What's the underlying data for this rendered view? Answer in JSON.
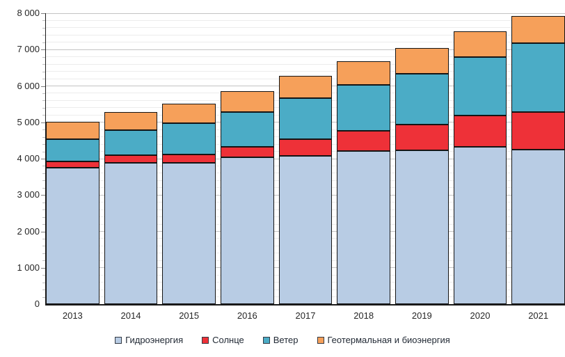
{
  "chart_data": {
    "type": "bar",
    "stacked": true,
    "title": "",
    "xlabel": "",
    "ylabel": "",
    "categories": [
      "2013",
      "2014",
      "2015",
      "2016",
      "2017",
      "2018",
      "2019",
      "2020",
      "2021"
    ],
    "series": [
      {
        "name": "Гидроэнергия",
        "color": "#b8cce4",
        "values": [
          3760,
          3880,
          3880,
          4030,
          4070,
          4220,
          4230,
          4320,
          4240
        ]
      },
      {
        "name": "Солнце",
        "color": "#ee3138",
        "values": [
          160,
          210,
          240,
          300,
          460,
          540,
          710,
          870,
          1050
        ]
      },
      {
        "name": "Ветер",
        "color": "#4bacc6",
        "values": [
          620,
          690,
          850,
          960,
          1130,
          1270,
          1390,
          1610,
          1880
        ]
      },
      {
        "name": "Геотермальная и биоэнергия",
        "color": "#f6a05a",
        "values": [
          480,
          510,
          540,
          570,
          610,
          650,
          710,
          710,
          760
        ]
      }
    ],
    "totals": [
      5020,
      5290,
      5510,
      5860,
      6270,
      6680,
      7040,
      7510,
      7930
    ],
    "ylim": [
      0,
      8000
    ],
    "y_major_step": 1000,
    "y_minor_step": 200,
    "y_tick_labels": [
      "0",
      "1 000",
      "2 000",
      "3 000",
      "4 000",
      "5 000",
      "6 000",
      "7 000",
      "8 000"
    ],
    "grid": true,
    "legend_position": "bottom"
  }
}
